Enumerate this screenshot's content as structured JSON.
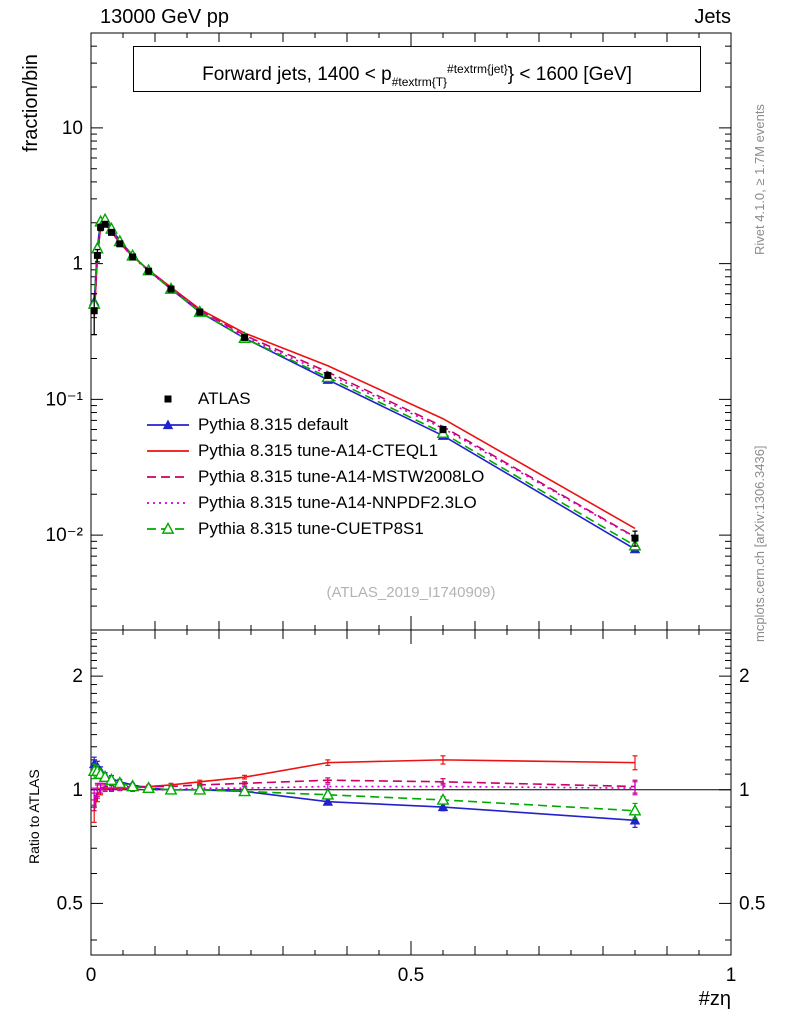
{
  "header": {
    "left": "13000 GeV pp",
    "right": "Jets"
  },
  "title": {
    "pre": "Forward jets, 1400 < p",
    "sub": "#textrm{T}",
    "sup": "#textrm{jet}",
    "post": "} < 1600 [GeV]"
  },
  "side_notes": {
    "top": "Rivet 4.1.0, ≥ 1.7M events",
    "bottom": "mcplots.cern.ch [arXiv:1306.3436]"
  },
  "watermark": "(ATLAS_2019_I1740909)",
  "chart_data": {
    "type": "line",
    "x": [
      0.005,
      0.01,
      0.015,
      0.022,
      0.032,
      0.045,
      0.065,
      0.09,
      0.125,
      0.17,
      0.24,
      0.37,
      0.55,
      0.85
    ],
    "x_axis": {
      "label": "#zη",
      "range": [
        0,
        1
      ],
      "major_ticks": [
        0,
        0.5,
        1
      ],
      "tick_labels": [
        "0",
        "0.5",
        "1"
      ]
    },
    "main_panel": {
      "ylabel": "fraction/bin",
      "yscale": "log",
      "yrange": [
        0.002,
        50
      ],
      "ytick_values": [
        10,
        1,
        0.1,
        0.01
      ],
      "ytick_labels": [
        "10",
        "1",
        "10⁻¹",
        "10⁻²"
      ],
      "atlas": {
        "label": "ATLAS",
        "color": "#000000",
        "marker": "square",
        "dash": "none",
        "y": [
          0.45,
          1.15,
          1.85,
          1.95,
          1.7,
          1.4,
          1.12,
          0.88,
          0.65,
          0.44,
          0.285,
          0.15,
          0.06,
          0.0095
        ],
        "yerr": [
          0.15,
          0.12,
          0.1,
          0.08,
          0.06,
          0.05,
          0.03,
          0.02,
          0.015,
          0.012,
          0.008,
          0.005,
          0.003,
          0.0012
        ]
      }
    },
    "ratio_panel": {
      "ylabel": "Ratio to ATLAS",
      "yscale": "log",
      "yrange": [
        0.365,
        2.65
      ],
      "ytick_values": [
        0.5,
        1,
        2
      ],
      "ytick_labels": [
        "0.5",
        "1",
        "2"
      ],
      "reference_line": 1
    },
    "series": [
      {
        "label": "Pythia 8.315 default",
        "color": "#2222cc",
        "dash": "solid",
        "marker": "triangle-filled",
        "ratio": [
          1.17,
          1.15,
          1.12,
          1.09,
          1.07,
          1.05,
          1.03,
          1.01,
          1.0,
          1.0,
          0.99,
          0.93,
          0.9,
          0.83
        ],
        "ratio_err": [
          0.05,
          0.04,
          0.03,
          0.02,
          0.02,
          0.015,
          0.01,
          0.01,
          0.01,
          0.01,
          0.01,
          0.015,
          0.02,
          0.035
        ]
      },
      {
        "label": "Pythia 8.315 tune-A14-CTEQL1",
        "color": "#ee1111",
        "dash": "solid",
        "marker": "none",
        "ratio": [
          0.88,
          0.97,
          1.0,
          1.01,
          1.01,
          1.01,
          1.01,
          1.02,
          1.03,
          1.05,
          1.08,
          1.18,
          1.2,
          1.18
        ],
        "ratio_err": [
          0.06,
          0.04,
          0.03,
          0.02,
          0.02,
          0.015,
          0.01,
          0.01,
          0.01,
          0.01,
          0.012,
          0.02,
          0.03,
          0.05
        ]
      },
      {
        "label": "Pythia 8.315 tune-A14-MSTW2008LO",
        "color": "#cc0066",
        "dash": "dashed",
        "marker": "none",
        "ratio": [
          0.93,
          0.99,
          1.01,
          1.02,
          1.02,
          1.02,
          1.02,
          1.02,
          1.02,
          1.03,
          1.04,
          1.06,
          1.05,
          1.02
        ],
        "ratio_err": [
          0.05,
          0.04,
          0.03,
          0.02,
          0.015,
          0.012,
          0.01,
          0.008,
          0.008,
          0.008,
          0.01,
          0.015,
          0.02,
          0.04
        ]
      },
      {
        "label": "Pythia 8.315 tune-A14-NNPDF2.3LO",
        "color": "#cc00cc",
        "dash": "dotted",
        "marker": "none",
        "ratio": [
          0.96,
          1.0,
          1.01,
          1.01,
          1.01,
          1.01,
          1.0,
          1.0,
          1.0,
          1.01,
          1.01,
          1.02,
          1.02,
          1.01
        ],
        "ratio_err": [
          0.05,
          0.04,
          0.03,
          0.02,
          0.015,
          0.012,
          0.01,
          0.008,
          0.008,
          0.008,
          0.01,
          0.015,
          0.02,
          0.04
        ]
      },
      {
        "label": "Pythia 8.315 tune-CUETP8S1",
        "color": "#00aa00",
        "dash": "dashed",
        "marker": "triangle-open",
        "ratio": [
          1.12,
          1.12,
          1.1,
          1.08,
          1.06,
          1.04,
          1.02,
          1.01,
          1.0,
          1.0,
          0.99,
          0.97,
          0.94,
          0.88
        ],
        "ratio_err": [
          0.05,
          0.04,
          0.03,
          0.02,
          0.015,
          0.012,
          0.01,
          0.008,
          0.008,
          0.008,
          0.01,
          0.015,
          0.02,
          0.04
        ]
      }
    ]
  }
}
